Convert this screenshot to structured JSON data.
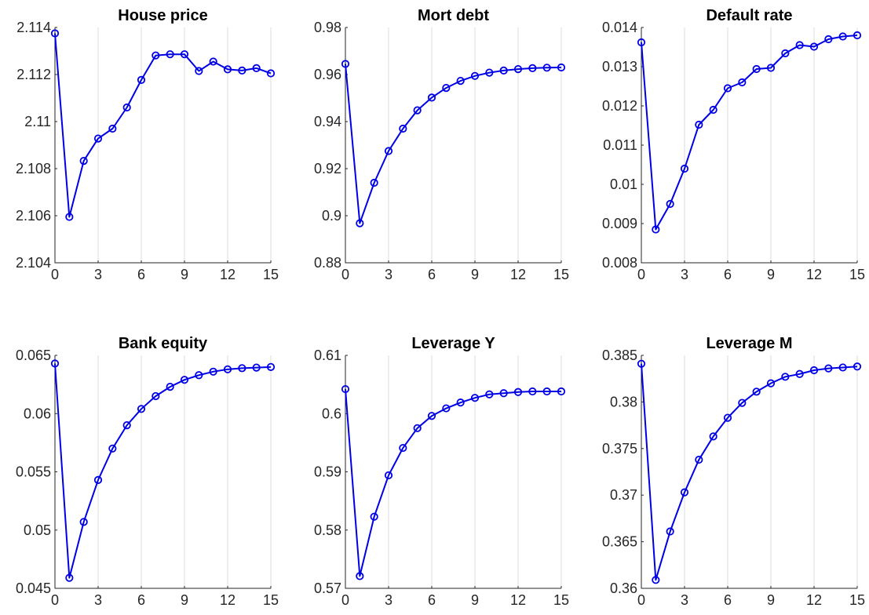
{
  "chart_data": [
    {
      "type": "line",
      "title": "House price",
      "xlabel": "",
      "ylabel": "",
      "xlim": [
        0,
        15
      ],
      "ylim": [
        2.104,
        2.114
      ],
      "xticks": [
        "0",
        "3",
        "6",
        "9",
        "12",
        "15"
      ],
      "yticks": [
        "2.104",
        "2.106",
        "2.108",
        "2.11",
        "2.112",
        "2.114"
      ],
      "xgrid": true,
      "ygrid": false,
      "color": "#0000e6",
      "marker": "circle",
      "series": [
        {
          "x": [
            0,
            1,
            2,
            3,
            4,
            5,
            6,
            7,
            8,
            9,
            10,
            11,
            12,
            13,
            14,
            15
          ],
          "values": [
            2.11375,
            2.10595,
            2.10833,
            2.10928,
            2.1097,
            2.1106,
            2.11177,
            2.11281,
            2.11286,
            2.11286,
            2.11215,
            2.11255,
            2.11222,
            2.11217,
            2.11227,
            2.11205
          ]
        }
      ]
    },
    {
      "type": "line",
      "title": "Mort debt",
      "xlabel": "",
      "ylabel": "",
      "xlim": [
        0,
        15
      ],
      "ylim": [
        0.88,
        0.98
      ],
      "xticks": [
        "0",
        "3",
        "6",
        "9",
        "12",
        "15"
      ],
      "yticks": [
        "0.88",
        "0.9",
        "0.92",
        "0.94",
        "0.96",
        "0.98"
      ],
      "xgrid": true,
      "ygrid": false,
      "color": "#0000e6",
      "marker": "circle",
      "series": [
        {
          "x": [
            0,
            1,
            2,
            3,
            4,
            5,
            6,
            7,
            8,
            9,
            10,
            11,
            12,
            13,
            14,
            15
          ],
          "values": [
            0.9645,
            0.8968,
            0.914,
            0.9275,
            0.937,
            0.9448,
            0.9502,
            0.9543,
            0.9573,
            0.9594,
            0.9608,
            0.9617,
            0.9623,
            0.9627,
            0.9629,
            0.963
          ]
        }
      ]
    },
    {
      "type": "line",
      "title": "Default rate",
      "xlabel": "",
      "ylabel": "",
      "xlim": [
        0,
        15
      ],
      "ylim": [
        0.008,
        0.014
      ],
      "xticks": [
        "0",
        "3",
        "6",
        "9",
        "12",
        "15"
      ],
      "yticks": [
        "0.008",
        "0.009",
        "0.01",
        "0.011",
        "0.012",
        "0.013",
        "0.014"
      ],
      "xgrid": true,
      "ygrid": false,
      "color": "#0000e6",
      "marker": "circle",
      "series": [
        {
          "x": [
            0,
            1,
            2,
            3,
            4,
            5,
            6,
            7,
            8,
            9,
            10,
            11,
            12,
            13,
            14,
            15
          ],
          "values": [
            0.01362,
            0.00885,
            0.0095,
            0.0104,
            0.01152,
            0.0119,
            0.01245,
            0.0126,
            0.01294,
            0.01297,
            0.01334,
            0.01355,
            0.01351,
            0.0137,
            0.01377,
            0.0138
          ]
        }
      ]
    },
    {
      "type": "line",
      "title": "Bank equity",
      "xlabel": "",
      "ylabel": "",
      "xlim": [
        0,
        15
      ],
      "ylim": [
        0.045,
        0.065
      ],
      "xticks": [
        "0",
        "3",
        "6",
        "9",
        "12",
        "15"
      ],
      "yticks": [
        "0.045",
        "0.05",
        "0.055",
        "0.06",
        "0.065"
      ],
      "xgrid": true,
      "ygrid": false,
      "color": "#0000e6",
      "marker": "circle",
      "series": [
        {
          "x": [
            0,
            1,
            2,
            3,
            4,
            5,
            6,
            7,
            8,
            9,
            10,
            11,
            12,
            13,
            14,
            15
          ],
          "values": [
            0.0643,
            0.0459,
            0.0507,
            0.0543,
            0.057,
            0.059,
            0.0604,
            0.0615,
            0.0623,
            0.0629,
            0.0633,
            0.0636,
            0.0638,
            0.0639,
            0.06395,
            0.064
          ]
        }
      ]
    },
    {
      "type": "line",
      "title": "Leverage Y",
      "xlabel": "",
      "ylabel": "",
      "xlim": [
        0,
        15
      ],
      "ylim": [
        0.57,
        0.61
      ],
      "xticks": [
        "0",
        "3",
        "6",
        "9",
        "12",
        "15"
      ],
      "yticks": [
        "0.57",
        "0.58",
        "0.59",
        "0.6",
        "0.61"
      ],
      "xgrid": true,
      "ygrid": false,
      "color": "#0000e6",
      "marker": "circle",
      "series": [
        {
          "x": [
            0,
            1,
            2,
            3,
            4,
            5,
            6,
            7,
            8,
            9,
            10,
            11,
            12,
            13,
            14,
            15
          ],
          "values": [
            0.6042,
            0.5721,
            0.5823,
            0.5894,
            0.5941,
            0.5975,
            0.5996,
            0.6009,
            0.6019,
            0.6027,
            0.6033,
            0.6035,
            0.6037,
            0.6038,
            0.6038,
            0.6038
          ]
        }
      ]
    },
    {
      "type": "line",
      "title": "Leverage M",
      "xlabel": "",
      "ylabel": "",
      "xlim": [
        0,
        15
      ],
      "ylim": [
        0.36,
        0.385
      ],
      "xticks": [
        "0",
        "3",
        "6",
        "9",
        "12",
        "15"
      ],
      "yticks": [
        "0.36",
        "0.365",
        "0.37",
        "0.375",
        "0.38",
        "0.385"
      ],
      "xgrid": true,
      "ygrid": false,
      "color": "#0000e6",
      "marker": "circle",
      "series": [
        {
          "x": [
            0,
            1,
            2,
            3,
            4,
            5,
            6,
            7,
            8,
            9,
            10,
            11,
            12,
            13,
            14,
            15
          ],
          "values": [
            0.3841,
            0.3609,
            0.3661,
            0.3703,
            0.3738,
            0.3763,
            0.3783,
            0.3799,
            0.3811,
            0.382,
            0.3827,
            0.383,
            0.3834,
            0.3836,
            0.3837,
            0.3838
          ]
        }
      ]
    }
  ]
}
